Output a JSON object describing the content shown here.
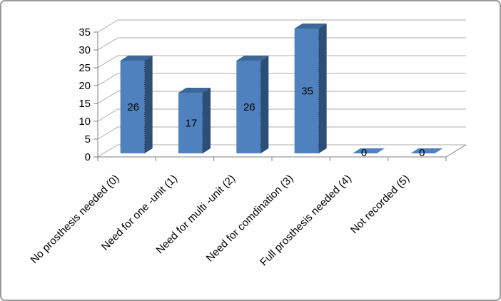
{
  "chart_data": {
    "type": "bar",
    "projection": "3d-column",
    "title": "",
    "categories": [
      "No prosthesis needed (0)",
      "Need for one -unit (1)",
      "Need for multi -unit (2)",
      "Need for comdination (3)",
      "Full prosthesis needed (4)",
      "Not recorded (5)"
    ],
    "values": [
      26,
      17,
      26,
      35,
      0,
      0
    ],
    "data_labels": [
      "26",
      "17",
      "26",
      "35",
      "0",
      "0"
    ],
    "xlabel": "",
    "ylabel": "",
    "ylim": [
      0,
      35
    ],
    "ytick_step": 5,
    "yticks": [
      "0",
      "5",
      "10",
      "15",
      "20",
      "25",
      "30",
      "35"
    ],
    "grid": true,
    "legend_position": "none",
    "colors": {
      "bar_front": "#4e81bd",
      "bar_top": "#3d6799",
      "bar_side": "#2d4f77",
      "bar_edge": "#1f3a58",
      "gridline": "#ababab",
      "axis": "#7f7f7f",
      "label_text": "#000000",
      "frame_border": "#9a9a9a",
      "background": "#ffffff"
    }
  }
}
